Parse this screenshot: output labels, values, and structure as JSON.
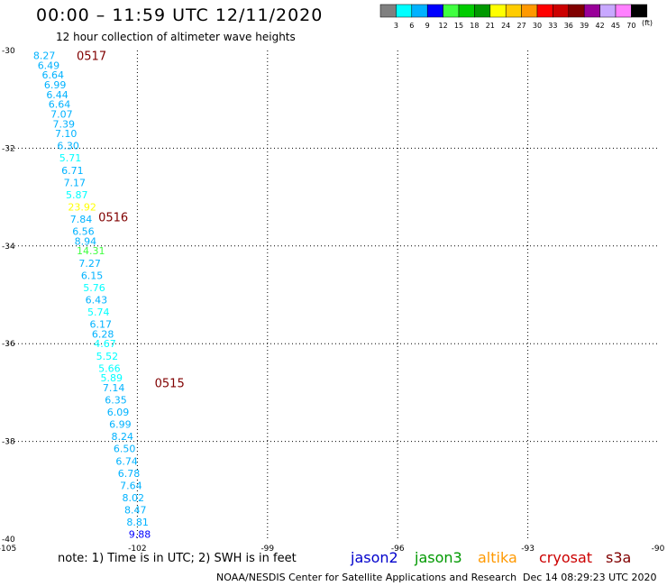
{
  "header": {
    "title": "00:00 – 11:59 UTC 12/11/2020",
    "subtitle": "12 hour collection of altimeter wave heights"
  },
  "legend": {
    "unit": "(ft)",
    "bins": [
      {
        "label": "3",
        "color": "#808080"
      },
      {
        "label": "6",
        "color": "#00ffff"
      },
      {
        "label": "9",
        "color": "#00b2ff"
      },
      {
        "label": "12",
        "color": "#0000ff"
      },
      {
        "label": "15",
        "color": "#40ff40"
      },
      {
        "label": "18",
        "color": "#00cc00"
      },
      {
        "label": "21",
        "color": "#009900"
      },
      {
        "label": "24",
        "color": "#ffff00"
      },
      {
        "label": "27",
        "color": "#ffcc00"
      },
      {
        "label": "30",
        "color": "#ff9900"
      },
      {
        "label": "33",
        "color": "#ff0000"
      },
      {
        "label": "36",
        "color": "#cc0000"
      },
      {
        "label": "39",
        "color": "#800000"
      },
      {
        "label": "42",
        "color": "#990099"
      },
      {
        "label": "45",
        "color": "#c8a8ff"
      },
      {
        "label": "70",
        "color": "#ff80ff"
      },
      {
        "label": "",
        "color": "#000000"
      }
    ]
  },
  "map": {
    "lon_ticks": [
      "-105",
      "-102",
      "-99",
      "-96",
      "-93",
      "-90"
    ],
    "lat_ticks": [
      "-30",
      "-32",
      "-34",
      "-36",
      "-38",
      "-40"
    ],
    "lon_range": [
      -105,
      -90
    ],
    "lat_range": [
      -40,
      -30
    ],
    "time_labels": [
      {
        "text": "0517",
        "lon": -103.4,
        "lat": -30.1,
        "color": "#800000"
      },
      {
        "text": "0516",
        "lon": -102.9,
        "lat": -33.4,
        "color": "#800000"
      },
      {
        "text": "0515",
        "lon": -101.6,
        "lat": -36.8,
        "color": "#800000"
      }
    ],
    "swh_points": [
      {
        "text": "8.27",
        "lon": -104.4,
        "lat": -30.1,
        "color": "#00b2ff"
      },
      {
        "text": "6.49",
        "lon": -104.3,
        "lat": -30.3,
        "color": "#00b2ff"
      },
      {
        "text": "6.64",
        "lon": -104.2,
        "lat": -30.5,
        "color": "#00b2ff"
      },
      {
        "text": "6.99",
        "lon": -104.15,
        "lat": -30.7,
        "color": "#00b2ff"
      },
      {
        "text": "6.44",
        "lon": -104.1,
        "lat": -30.9,
        "color": "#00b2ff"
      },
      {
        "text": "6.64",
        "lon": -104.05,
        "lat": -31.1,
        "color": "#00b2ff"
      },
      {
        "text": "7.07",
        "lon": -104.0,
        "lat": -31.3,
        "color": "#00b2ff"
      },
      {
        "text": "7.39",
        "lon": -103.95,
        "lat": -31.5,
        "color": "#00b2ff"
      },
      {
        "text": "7.10",
        "lon": -103.9,
        "lat": -31.7,
        "color": "#00b2ff"
      },
      {
        "text": "6.30",
        "lon": -103.85,
        "lat": -31.95,
        "color": "#00b2ff"
      },
      {
        "text": "5.71",
        "lon": -103.8,
        "lat": -32.2,
        "color": "#00ffff"
      },
      {
        "text": "6.71",
        "lon": -103.75,
        "lat": -32.45,
        "color": "#00b2ff"
      },
      {
        "text": "7.17",
        "lon": -103.7,
        "lat": -32.7,
        "color": "#00b2ff"
      },
      {
        "text": "5.87",
        "lon": -103.65,
        "lat": -32.95,
        "color": "#00ffff"
      },
      {
        "text": "23.92",
        "lon": -103.6,
        "lat": -33.2,
        "color": "#ffff00"
      },
      {
        "text": "7.84",
        "lon": -103.55,
        "lat": -33.45,
        "color": "#00b2ff"
      },
      {
        "text": "6.56",
        "lon": -103.5,
        "lat": -33.7,
        "color": "#00b2ff"
      },
      {
        "text": "8.94",
        "lon": -103.45,
        "lat": -33.9,
        "color": "#00b2ff"
      },
      {
        "text": "14.31",
        "lon": -103.4,
        "lat": -34.1,
        "color": "#40ff40"
      },
      {
        "text": "7.27",
        "lon": -103.35,
        "lat": -34.35,
        "color": "#00b2ff"
      },
      {
        "text": "6.15",
        "lon": -103.3,
        "lat": -34.6,
        "color": "#00b2ff"
      },
      {
        "text": "5.76",
        "lon": -103.25,
        "lat": -34.85,
        "color": "#00ffff"
      },
      {
        "text": "6.43",
        "lon": -103.2,
        "lat": -35.1,
        "color": "#00b2ff"
      },
      {
        "text": "5.74",
        "lon": -103.15,
        "lat": -35.35,
        "color": "#00ffff"
      },
      {
        "text": "6.17",
        "lon": -103.1,
        "lat": -35.6,
        "color": "#00b2ff"
      },
      {
        "text": "6.28",
        "lon": -103.05,
        "lat": -35.8,
        "color": "#00b2ff"
      },
      {
        "text": "4.67",
        "lon": -103.0,
        "lat": -36.0,
        "color": "#00ffff"
      },
      {
        "text": "5.52",
        "lon": -102.95,
        "lat": -36.25,
        "color": "#00ffff"
      },
      {
        "text": "5.66",
        "lon": -102.9,
        "lat": -36.5,
        "color": "#00ffff"
      },
      {
        "text": "5.89",
        "lon": -102.85,
        "lat": -36.7,
        "color": "#00ffff"
      },
      {
        "text": "7.14",
        "lon": -102.8,
        "lat": -36.9,
        "color": "#00b2ff"
      },
      {
        "text": "6.35",
        "lon": -102.75,
        "lat": -37.15,
        "color": "#00b2ff"
      },
      {
        "text": "6.09",
        "lon": -102.7,
        "lat": -37.4,
        "color": "#00b2ff"
      },
      {
        "text": "6.99",
        "lon": -102.65,
        "lat": -37.65,
        "color": "#00b2ff"
      },
      {
        "text": "8.24",
        "lon": -102.6,
        "lat": -37.9,
        "color": "#00b2ff"
      },
      {
        "text": "6.50",
        "lon": -102.55,
        "lat": -38.15,
        "color": "#00b2ff"
      },
      {
        "text": "6.74",
        "lon": -102.5,
        "lat": -38.4,
        "color": "#00b2ff"
      },
      {
        "text": "6.78",
        "lon": -102.45,
        "lat": -38.65,
        "color": "#00b2ff"
      },
      {
        "text": "7.64",
        "lon": -102.4,
        "lat": -38.9,
        "color": "#00b2ff"
      },
      {
        "text": "8.02",
        "lon": -102.35,
        "lat": -39.15,
        "color": "#00b2ff"
      },
      {
        "text": "8.47",
        "lon": -102.3,
        "lat": -39.4,
        "color": "#00b2ff"
      },
      {
        "text": "8.81",
        "lon": -102.25,
        "lat": -39.65,
        "color": "#00b2ff"
      },
      {
        "text": "9.88",
        "lon": -102.2,
        "lat": -39.9,
        "color": "#0000ff"
      }
    ]
  },
  "footer": {
    "note": "note: 1) Time is in UTC; 2) SWH is in feet",
    "credit": "NOAA/NESDIS Center for Satellite Applications and Research",
    "timestamp": "Dec 14 08:29:23 UTC 2020",
    "satellites": [
      {
        "name": "jason2",
        "color": "#0000cc"
      },
      {
        "name": "jason3",
        "color": "#009900"
      },
      {
        "name": "altika",
        "color": "#ff9900"
      },
      {
        "name": "cryosat",
        "color": "#cc0000"
      },
      {
        "name": "s3a",
        "color": "#800000"
      }
    ]
  }
}
